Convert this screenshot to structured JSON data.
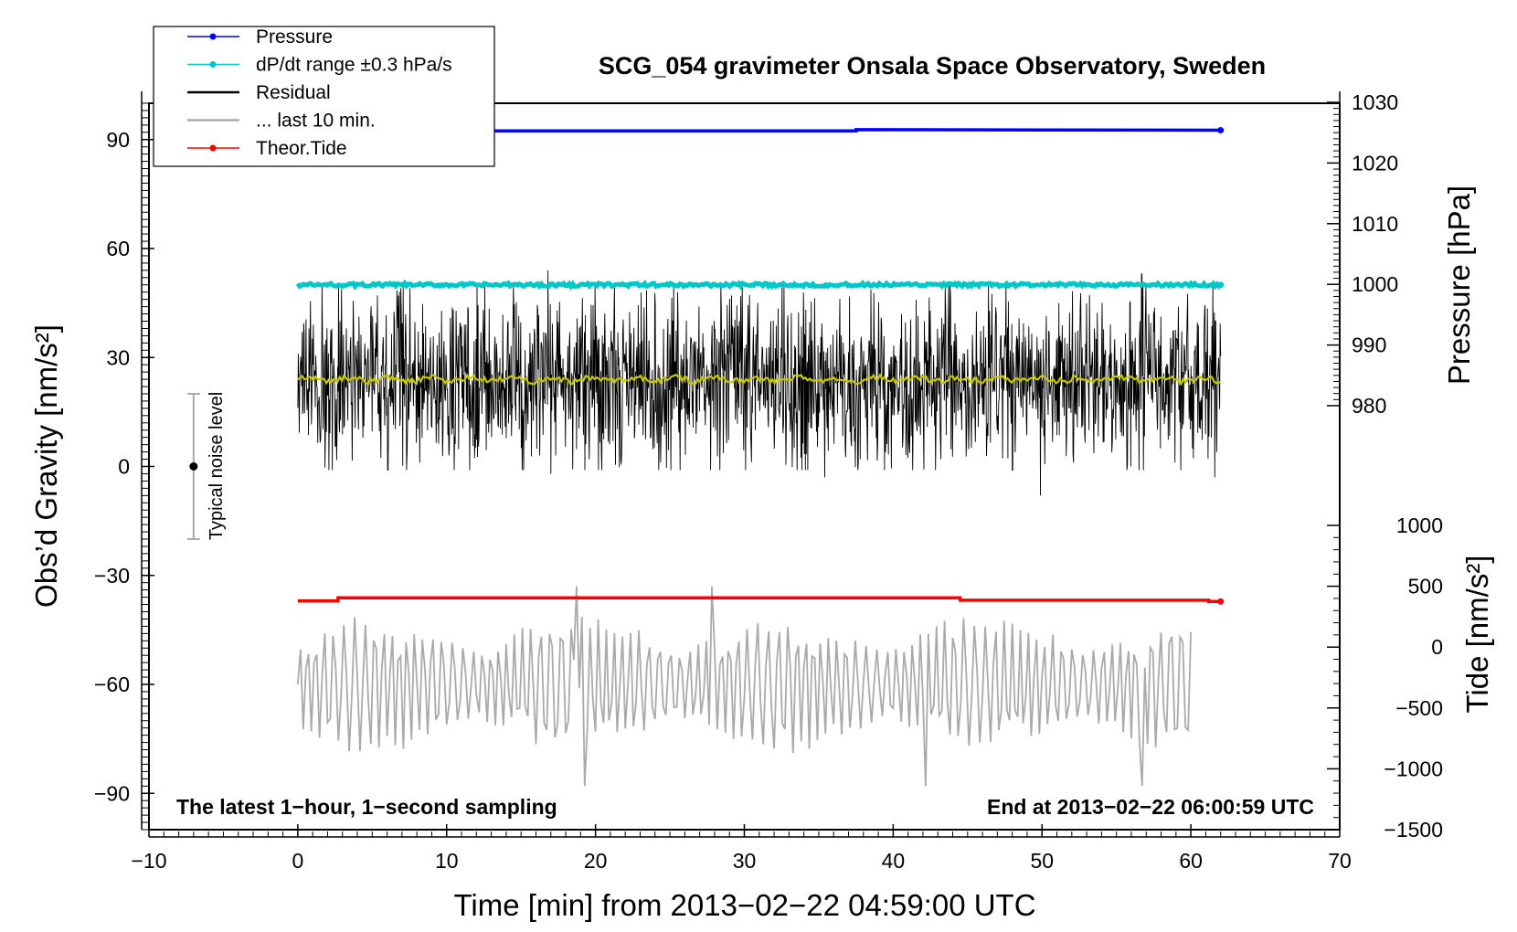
{
  "chart_data": {
    "type": "line",
    "title": "SCG_054 gravimeter Onsala Space Observatory, Sweden",
    "xlabel": "Time [min] from 2013−02−22 04:59:00 UTC",
    "ylabel_left": "Obs’d Gravity [nm/s²]",
    "ylabel_right_top": "Pressure [hPa]",
    "ylabel_right_bottom": "Tide [nm/s²]",
    "xlim": [
      -10,
      70
    ],
    "ylim": [
      -100,
      100
    ],
    "pressure_ylim": [
      980,
      1030
    ],
    "tide_ylim": [
      -1500,
      1000
    ],
    "x_ticks": [
      "−10",
      "0",
      "10",
      "20",
      "30",
      "40",
      "50",
      "60",
      "70"
    ],
    "x_tick_values": [
      -10,
      0,
      10,
      20,
      30,
      40,
      50,
      60,
      70
    ],
    "y_ticks": [
      "90",
      "60",
      "30",
      "0",
      "−30",
      "−60",
      "−90"
    ],
    "y_tick_values": [
      90,
      60,
      30,
      0,
      -30,
      -60,
      -90
    ],
    "pressure_ticks": [
      "1030",
      "1020",
      "1010",
      "1000",
      "990",
      "980"
    ],
    "pressure_tick_values": [
      1030,
      1020,
      1010,
      1000,
      990,
      980
    ],
    "tide_ticks": [
      "1000",
      "500",
      "0",
      "−500",
      "−1000",
      "−1500"
    ],
    "tide_tick_values": [
      1000,
      500,
      0,
      -500,
      -1000,
      -1500
    ],
    "legend": [
      {
        "label": "Pressure",
        "color": "#0000ff",
        "marker": true
      },
      {
        "label": "dP/dt range ±0.3 hPa/s",
        "color": "#00c8c8",
        "marker": true
      },
      {
        "label": "Residual",
        "color": "#000000",
        "marker": false
      },
      {
        "label": "... last 10 min.",
        "color": "#aaaaaa",
        "marker": false
      },
      {
        "label": "Theor.Tide",
        "color": "#ff0000",
        "marker": true
      }
    ],
    "annotation_left": "The latest 1−hour, 1−second sampling",
    "annotation_right": "End at 2013−02−22 06:00:59 UTC",
    "noise_label": "Typical noise level",
    "noise_bar": {
      "x": -7,
      "center": 0,
      "low": -20,
      "high": 20
    },
    "series": [
      {
        "name": "Pressure",
        "color": "#0000ff",
        "unit": "hPa",
        "x": [
          0,
          37.5,
          37.5,
          62
        ],
        "values": [
          1025.3,
          1025.3,
          1025.5,
          1025.4
        ]
      },
      {
        "name": "dP/dt range",
        "color": "#00c8c8",
        "unit": "nm/s2",
        "x": [
          0,
          62
        ],
        "values": [
          50,
          50
        ]
      },
      {
        "name": "Residual",
        "color": "#000000",
        "unit": "nm/s2",
        "x_range": [
          0,
          62
        ],
        "mean": 24,
        "amplitude": 14,
        "spikes": [
          {
            "x": 16.8,
            "value": 54
          },
          {
            "x": 56.7,
            "value": 53
          },
          {
            "x": 49.9,
            "value": -8
          },
          {
            "x": 17,
            "value": -2
          },
          {
            "x": 8.2,
            "value": 1
          },
          {
            "x": 35.4,
            "value": -3
          },
          {
            "x": 61.6,
            "value": -3
          }
        ]
      },
      {
        "name": "Residual mean",
        "color": "#c8c800",
        "unit": "nm/s2",
        "x": [
          0,
          62
        ],
        "values": [
          24,
          24
        ]
      },
      {
        "name": "Theor.Tide",
        "color": "#ff0000",
        "unit": "nm/s2",
        "x": [
          0,
          2.7,
          2.7,
          44.5,
          44.5,
          61.2,
          61.2,
          62
        ],
        "values": [
          380,
          380,
          405,
          405,
          385,
          385,
          375,
          375
        ]
      },
      {
        "name": "last 10 min.",
        "color": "#aaaaaa",
        "unit": "nm/s2",
        "x_range": [
          0,
          60
        ],
        "mean": -60,
        "amplitude": 14,
        "peaks": [
          {
            "x": 18.8,
            "value": -33
          },
          {
            "x": 27.9,
            "value": -33
          },
          {
            "x": 19.3,
            "value": -88
          },
          {
            "x": 42.2,
            "value": -88
          },
          {
            "x": 56.7,
            "value": -88
          }
        ]
      }
    ]
  }
}
